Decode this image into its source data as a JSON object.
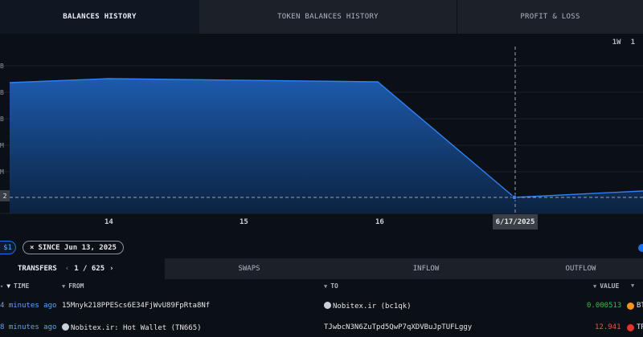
{
  "top_tabs": [
    "BALANCES HISTORY",
    "TOKEN BALANCES HISTORY",
    "PROFIT & LOSS"
  ],
  "range_buttons": [
    "1W",
    "1"
  ],
  "chart": {
    "y_labels": [
      "B",
      "B",
      "B",
      "M",
      "M"
    ],
    "x_labels": [
      "14",
      "15",
      "16"
    ],
    "hover_date": "6/17/2025",
    "hover_value": "2",
    "accent": "#1f6feb"
  },
  "filters": {
    "chip_left": "$1",
    "since_icon": "×",
    "since_label": "SINCE Jun 13, 2025"
  },
  "section_tabs": {
    "transfers": "TRANSFERS",
    "page_prev": "‹",
    "page_text": "1 / 625",
    "page_next": "›",
    "swaps": "SWAPS",
    "inflow": "INFLOW",
    "outflow": "OUTFLOW"
  },
  "table": {
    "headers": {
      "time": "TIME",
      "from": "FROM",
      "to": "TO",
      "value": "VALUE"
    },
    "rows": [
      {
        "time": "4 minutes ago",
        "from": "15Mnyk218PPEScs6E34FjWvU89FpRta8Nf",
        "to": "Nobitex.ir (bc1qk)",
        "value": "0.000513",
        "token": "BT"
      },
      {
        "time": "8 minutes ago",
        "from": "Nobitex.ir: Hot Wallet (TN665)",
        "to": "TJwbcN3N6ZuTpd5QwP7qXDVBuJpTUFLggy",
        "value": "12.941",
        "token": "TR"
      }
    ]
  }
}
